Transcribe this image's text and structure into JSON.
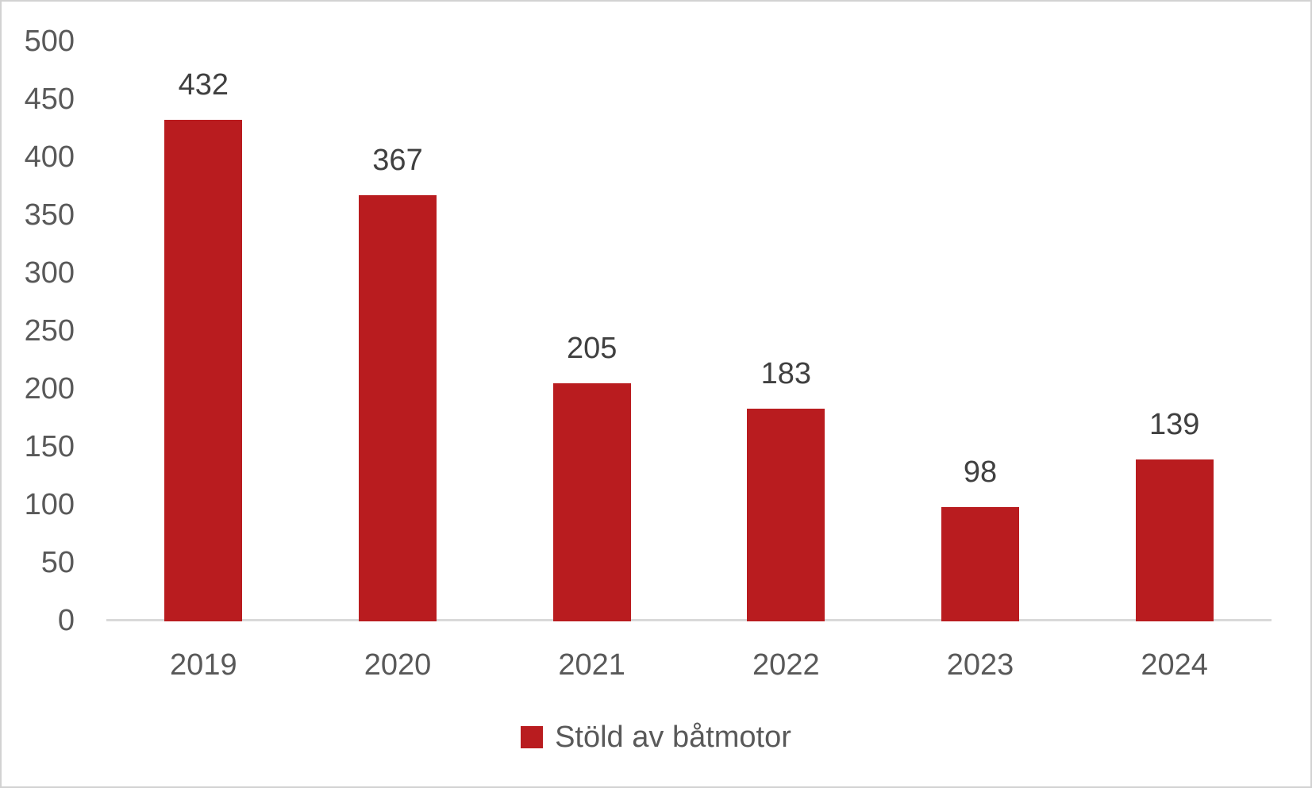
{
  "chart_data": {
    "type": "bar",
    "categories": [
      "2019",
      "2020",
      "2021",
      "2022",
      "2023",
      "2024"
    ],
    "values": [
      432,
      367,
      205,
      183,
      98,
      139
    ],
    "series_name": "Stöld av båtmotor",
    "title": "",
    "xlabel": "",
    "ylabel": "",
    "ylim": [
      0,
      500
    ],
    "ytick_step": 50,
    "yticks": [
      500,
      450,
      400,
      350,
      300,
      250,
      200,
      150,
      100,
      50,
      0
    ],
    "grid": false,
    "data_labels": true,
    "legend_position": "bottom"
  },
  "colors": {
    "bar": "#b91c1f",
    "axis_line": "#d9d9d9",
    "axis_tick_label": "#595959",
    "data_label": "#404040",
    "legend_label": "#595959",
    "frame_border": "#d2d2d2",
    "background": "#ffffff"
  }
}
